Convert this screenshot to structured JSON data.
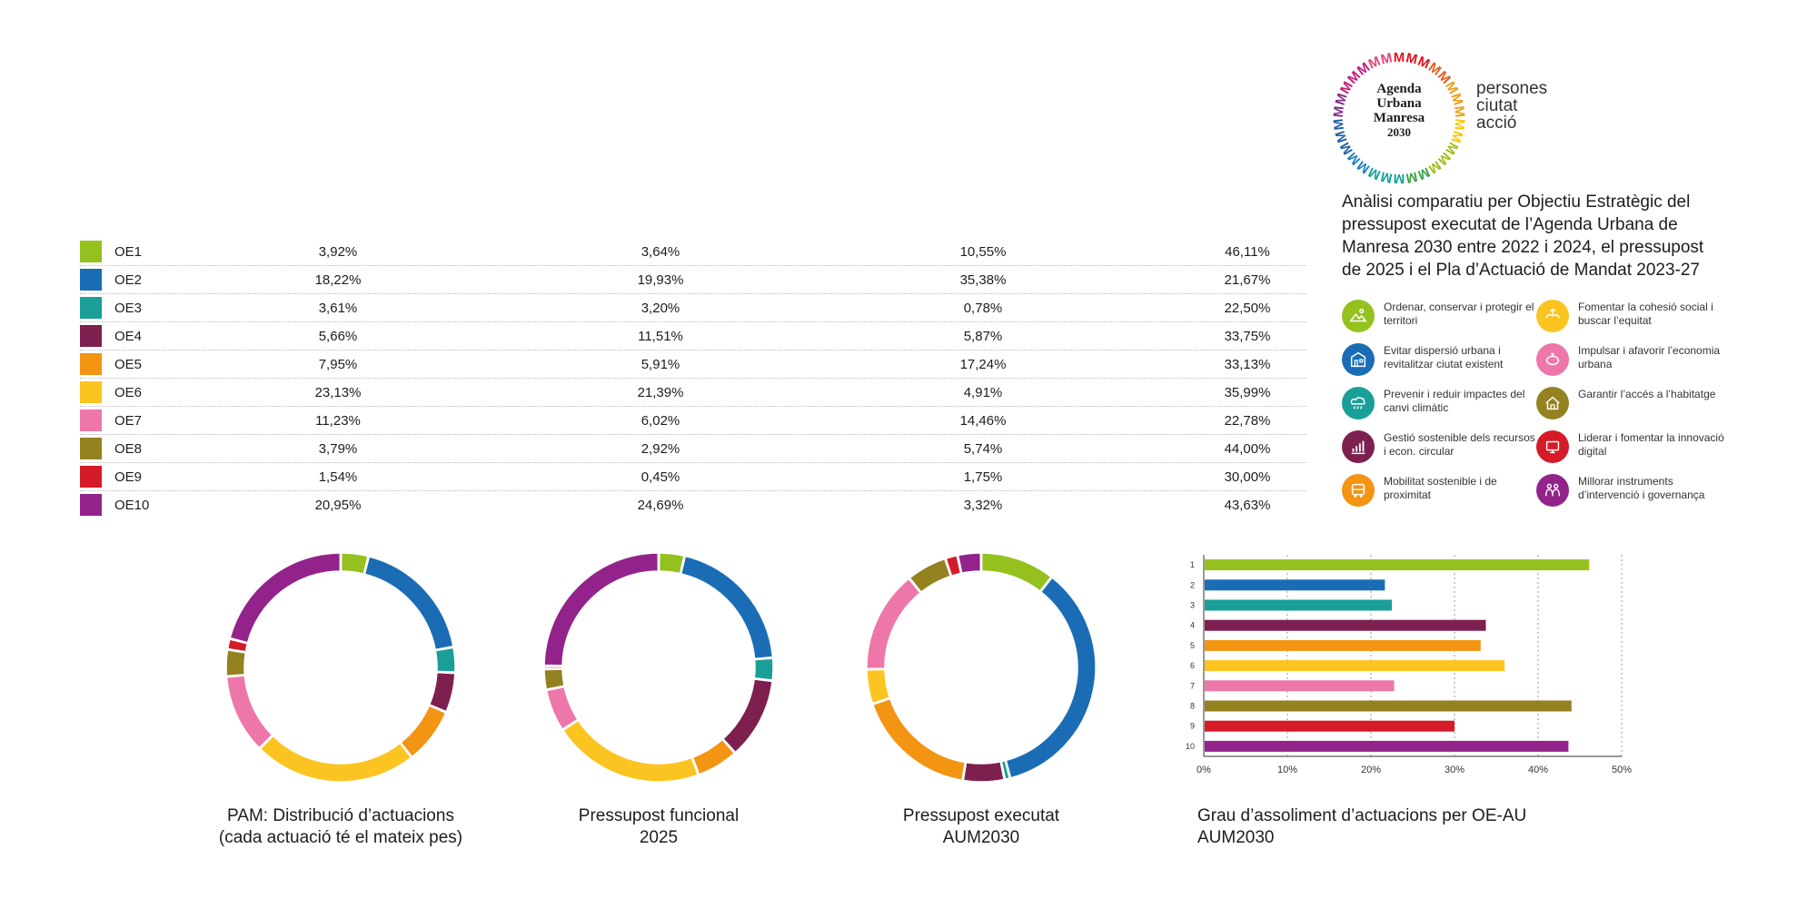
{
  "logo": {
    "lines": [
      "Agenda",
      "Urbana",
      "Manresa",
      "2030"
    ],
    "ring_letter": "M",
    "ring_colors": [
      "#e1141f",
      "#e55a1a",
      "#ee9b12",
      "#f7c600",
      "#9bbf1e",
      "#3aa346",
      "#16a19a",
      "#1c7fc2",
      "#1f5fa6",
      "#7d2a84",
      "#c3197a",
      "#e0457b"
    ]
  },
  "tagline": [
    "persones",
    "ciutat",
    "acció"
  ],
  "intro": "Anàlisi comparatiu per Objectiu Estratègic del pressupost executat de l’Agenda Urbana de Manresa 2030 entre 2022 i 2024, el pressupost de 2025 i el Pla d’Actuació de Mandat 2023-27",
  "objectives": [
    {
      "text": "Ordenar, conservar i protegir el territori",
      "color": "#95c11f",
      "icon": "landscape-icon"
    },
    {
      "text": "Fomentar la cohesió social i buscar l’equitat",
      "color": "#fcc420",
      "icon": "hands-icon"
    },
    {
      "text": "Evitar dispersió urbana i revitalitzar ciutat existent",
      "color": "#1a6db5",
      "icon": "buildings-icon"
    },
    {
      "text": "Impulsar i afavorir l’economia urbana",
      "color": "#ee77aa",
      "icon": "piggy-bank-icon"
    },
    {
      "text": "Prevenir i reduir impactes del canvi climàtic",
      "color": "#1a9e98",
      "icon": "cloud-rain-icon"
    },
    {
      "text": "Garantir l’accés a l’habitatge",
      "color": "#94811f",
      "icon": "house-icon"
    },
    {
      "text": "Gestió sostenible dels recursos i econ. circular",
      "color": "#7d1f4f",
      "icon": "growth-chart-icon"
    },
    {
      "text": "Liderar i fomentar la innovació digital",
      "color": "#d51b27",
      "icon": "digital-icon"
    },
    {
      "text": "Mobilitat sostenible i de proximitat",
      "color": "#f39413",
      "icon": "bus-icon"
    },
    {
      "text": "Millorar instruments d’intervenció i governança",
      "color": "#93238a",
      "icon": "people-icon"
    }
  ],
  "chart_data": [
    {
      "type": "table",
      "rows": [
        {
          "label": "OE1",
          "color": "#95c11f",
          "values": [
            "3,92%",
            "3,64%",
            "10,55%",
            "46,11%"
          ]
        },
        {
          "label": "OE2",
          "color": "#1a6db5",
          "values": [
            "18,22%",
            "19,93%",
            "35,38%",
            "21,67%"
          ]
        },
        {
          "label": "OE3",
          "color": "#1a9e98",
          "values": [
            "3,61%",
            "3,20%",
            "0,78%",
            "22,50%"
          ]
        },
        {
          "label": "OE4",
          "color": "#7d1f4f",
          "values": [
            "5,66%",
            "11,51%",
            "5,87%",
            "33,75%"
          ]
        },
        {
          "label": "OE5",
          "color": "#f39413",
          "values": [
            "7,95%",
            "5,91%",
            "17,24%",
            "33,13%"
          ]
        },
        {
          "label": "OE6",
          "color": "#fcc420",
          "values": [
            "23,13%",
            "21,39%",
            "4,91%",
            "35,99%"
          ]
        },
        {
          "label": "OE7",
          "color": "#ee77aa",
          "values": [
            "11,23%",
            "6,02%",
            "14,46%",
            "22,78%"
          ]
        },
        {
          "label": "OE8",
          "color": "#94811f",
          "values": [
            "3,79%",
            "2,92%",
            "5,74%",
            "44,00%"
          ]
        },
        {
          "label": "OE9",
          "color": "#d51b27",
          "values": [
            "1,54%",
            "0,45%",
            "1,75%",
            "30,00%"
          ]
        },
        {
          "label": "OE10",
          "color": "#93238a",
          "values": [
            "20,95%",
            "24,69%",
            "3,32%",
            "43,63%"
          ]
        }
      ]
    },
    {
      "type": "pie",
      "title": "PAM: Distribució d’actuacions (cada actuació té el mateix pes)",
      "title_lines": [
        "PAM: Distribució d’actuacions",
        "(cada actuació té el mateix pes)"
      ],
      "categories": [
        "OE1",
        "OE2",
        "OE3",
        "OE4",
        "OE5",
        "OE6",
        "OE7",
        "OE8",
        "OE9",
        "OE10"
      ],
      "values": [
        3.92,
        18.22,
        3.61,
        5.66,
        7.95,
        23.13,
        11.23,
        3.79,
        1.54,
        20.95
      ]
    },
    {
      "type": "pie",
      "title": "Pressupost funcional 2025",
      "title_lines": [
        "Pressupost funcional",
        "2025"
      ],
      "categories": [
        "OE1",
        "OE2",
        "OE3",
        "OE4",
        "OE5",
        "OE6",
        "OE7",
        "OE8",
        "OE9",
        "OE10"
      ],
      "values": [
        3.64,
        19.93,
        3.2,
        11.51,
        5.91,
        21.39,
        6.02,
        2.92,
        0.45,
        24.69
      ]
    },
    {
      "type": "pie",
      "title": "Pressupost executat AUM2030",
      "title_lines": [
        "Pressupost executat",
        "AUM2030"
      ],
      "categories": [
        "OE1",
        "OE2",
        "OE3",
        "OE4",
        "OE5",
        "OE6",
        "OE7",
        "OE8",
        "OE9",
        "OE10"
      ],
      "values": [
        10.55,
        35.38,
        0.78,
        5.87,
        17.24,
        4.91,
        14.46,
        5.74,
        1.75,
        3.32
      ]
    },
    {
      "type": "bar",
      "title": "Grau d’assoliment d’actuacions per OE-AU AUM2030",
      "title_lines": [
        "Grau d’assoliment d’actuacions per OE-AU",
        "AUM2030"
      ],
      "categories": [
        "1",
        "2",
        "3",
        "4",
        "5",
        "6",
        "7",
        "8",
        "9",
        "10"
      ],
      "values": [
        46.11,
        21.67,
        22.5,
        33.75,
        33.13,
        35.99,
        22.78,
        44.0,
        30.0,
        43.63
      ],
      "xlim": [
        0,
        50
      ],
      "xticks": [
        "0%",
        "10%",
        "20%",
        "30%",
        "40%",
        "50%"
      ],
      "grid": true
    }
  ]
}
